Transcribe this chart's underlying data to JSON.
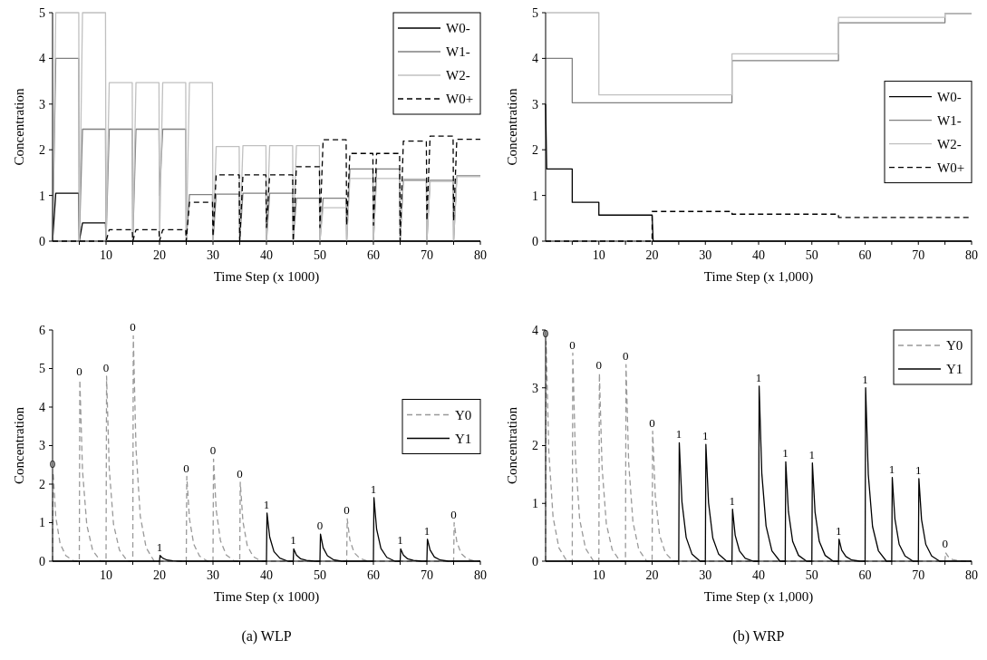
{
  "chart_data": [
    {
      "type": "line",
      "xlabel": "Time Step (x 1000)",
      "ylabel": "Concentration",
      "xlim": [
        0,
        80
      ],
      "ylim": [
        0,
        5
      ],
      "xticks": [
        {
          "value": 5,
          "label": null
        },
        10,
        {
          "value": 15,
          "label": null
        },
        20,
        {
          "value": 25,
          "label": null
        },
        30,
        {
          "value": 35,
          "label": null
        },
        40,
        {
          "value": 45,
          "label": null
        },
        50,
        {
          "value": 55,
          "label": null
        },
        60,
        {
          "value": 65,
          "label": null
        },
        70,
        {
          "value": 75,
          "label": null
        },
        80
      ],
      "yticks": [
        0,
        1,
        2,
        3,
        4,
        5
      ],
      "legend": "top right",
      "x": [
        0,
        0.6,
        4.9,
        5,
        5.6,
        9.9,
        10,
        10.6,
        14.9,
        15,
        15.6,
        19.9,
        20,
        20.6,
        24.9,
        25,
        25.6,
        29.9,
        30,
        30.6,
        34.9,
        35,
        35.6,
        39.9,
        40,
        40.6,
        44.9,
        45,
        45.6,
        49.9,
        50,
        50.6,
        54.9,
        55,
        55.6,
        59.9,
        60,
        60.6,
        64.9,
        65,
        65.6,
        69.9,
        70,
        70.6,
        74.9,
        75,
        75.6,
        80
      ],
      "series": [
        {
          "name": "W0-",
          "color": "#000000",
          "values": [
            0,
            1.05,
            1.05,
            0,
            0.4,
            0.4,
            0,
            0,
            0,
            0,
            0,
            0,
            0,
            0,
            0,
            0,
            0,
            0,
            0,
            0,
            0,
            0,
            0,
            0,
            0,
            0,
            0,
            0,
            0,
            0,
            0,
            0,
            0,
            0,
            0,
            0,
            0,
            0,
            0,
            0,
            0,
            0,
            0,
            0,
            0,
            0,
            0,
            0
          ]
        },
        {
          "name": "W1-",
          "color": "#808080",
          "values": [
            0,
            4,
            4,
            0,
            2.45,
            2.45,
            0,
            2.45,
            2.45,
            0,
            2.45,
            2.45,
            1.0,
            2.45,
            2.45,
            0,
            1.02,
            1.02,
            0,
            1.03,
            1.03,
            0,
            1.05,
            1.05,
            0,
            1.05,
            1.05,
            0,
            0.94,
            0.94,
            0,
            0.94,
            0.94,
            0,
            1.58,
            1.58,
            0,
            1.58,
            1.58,
            0,
            1.33,
            1.33,
            0,
            1.33,
            1.33,
            0,
            1.43,
            1.43
          ]
        },
        {
          "name": "W2-",
          "color": "#c0c0c0",
          "values": [
            0,
            5,
            5,
            0,
            5,
            5,
            0,
            3.47,
            3.47,
            0,
            3.47,
            3.47,
            0,
            3.47,
            3.47,
            0,
            3.47,
            3.47,
            0,
            2.07,
            2.07,
            0,
            2.09,
            2.09,
            0,
            2.09,
            2.09,
            0,
            2.09,
            2.09,
            0,
            0.73,
            0.73,
            0,
            1.37,
            1.37,
            0,
            1.37,
            1.37,
            0,
            1.36,
            1.36,
            0,
            1.31,
            1.31,
            0,
            1.41,
            1.41
          ]
        },
        {
          "name": "W0+",
          "color": "#000000",
          "line_style": "dashed",
          "values": [
            0,
            0,
            0,
            0,
            0,
            0,
            0,
            0.25,
            0.25,
            0,
            0.25,
            0.25,
            0,
            0.25,
            0.25,
            0,
            0.85,
            0.85,
            0.1,
            1.45,
            1.45,
            0,
            1.45,
            1.45,
            0.3,
            1.45,
            1.45,
            0,
            1.63,
            1.63,
            0.3,
            2.22,
            2.22,
            0.35,
            1.92,
            1.92,
            0.35,
            1.92,
            1.92,
            0,
            2.19,
            2.19,
            0.45,
            2.3,
            2.3,
            0.45,
            2.23,
            2.23
          ]
        }
      ]
    },
    {
      "type": "line",
      "xlabel": "Time Step (x 1,000)",
      "ylabel": "Concentration",
      "xlim": [
        0,
        80
      ],
      "ylim": [
        0,
        5
      ],
      "xticks": [
        {
          "value": 5,
          "label": null
        },
        10,
        {
          "value": 15,
          "label": null
        },
        20,
        {
          "value": 25,
          "label": null
        },
        30,
        {
          "value": 35,
          "label": null
        },
        40,
        {
          "value": 45,
          "label": null
        },
        50,
        {
          "value": 55,
          "label": null
        },
        60,
        {
          "value": 65,
          "label": null
        },
        70,
        {
          "value": 75,
          "label": null
        },
        80
      ],
      "yticks": [
        0,
        1,
        2,
        3,
        4,
        5
      ],
      "legend": "right",
      "series": [
        {
          "name": "W0-",
          "color": "#000000",
          "x": [
            0,
            0.2,
            5,
            5,
            10,
            10,
            20,
            20.2,
            80
          ],
          "values": [
            3,
            1.58,
            1.58,
            0.85,
            0.85,
            0.57,
            0.57,
            0,
            0
          ]
        },
        {
          "name": "W1-",
          "color": "#808080",
          "x": [
            0,
            5,
            5,
            35,
            35,
            55,
            55,
            75,
            75,
            80
          ],
          "values": [
            4,
            4,
            3.03,
            3.03,
            3.95,
            3.95,
            4.78,
            4.78,
            4.98,
            4.98
          ]
        },
        {
          "name": "W2-",
          "color": "#c0c0c0",
          "x": [
            0,
            10,
            10,
            35,
            35,
            55,
            55,
            75,
            75,
            80
          ],
          "values": [
            5,
            5,
            3.2,
            3.2,
            4.1,
            4.1,
            4.9,
            4.9,
            4.98,
            4.98
          ]
        },
        {
          "name": "W0+",
          "color": "#000000",
          "line_style": "dashed",
          "x": [
            0,
            20,
            20,
            35,
            35,
            55,
            55,
            80
          ],
          "values": [
            0,
            0,
            0.65,
            0.65,
            0.59,
            0.59,
            0.52,
            0.52
          ]
        }
      ]
    },
    {
      "type": "line",
      "xlabel": "Time Step (x 1000)",
      "ylabel": "Concentration",
      "xlim": [
        0,
        80
      ],
      "ylim": [
        0,
        6
      ],
      "xticks": [
        {
          "value": 5,
          "label": null
        },
        10,
        {
          "value": 15,
          "label": null
        },
        20,
        {
          "value": 25,
          "label": null
        },
        30,
        {
          "value": 35,
          "label": null
        },
        40,
        {
          "value": 45,
          "label": null
        },
        50,
        {
          "value": 55,
          "label": null
        },
        60,
        {
          "value": 65,
          "label": null
        },
        70,
        {
          "value": 75,
          "label": null
        },
        80
      ],
      "yticks": [
        0,
        1,
        2,
        3,
        4,
        5,
        6
      ],
      "legend": "right",
      "series": [
        {
          "name": "Y0",
          "color": "#999999",
          "line_style": "dashed",
          "x": [
            0,
            0.1,
            0.6,
            1.4,
            2.5,
            4,
            5,
            5.1,
            5.6,
            6.4,
            7.5,
            9,
            10,
            10.1,
            10.6,
            11.4,
            12.5,
            14,
            15,
            15.1,
            15.6,
            16.4,
            17.5,
            19,
            25,
            25.1,
            25.6,
            26.4,
            27.5,
            29,
            30,
            30.1,
            30.6,
            31.4,
            32.5,
            34,
            35,
            35.1,
            35.6,
            36.4,
            37.5,
            39,
            55,
            55.1,
            55.6,
            56.4,
            57.5,
            59,
            75,
            75.1,
            75.6,
            76.4,
            77.5,
            79,
            80
          ],
          "values": [
            0,
            2.3,
            1.15,
            0.46,
            0.14,
            0,
            0,
            4.7,
            2.35,
            0.94,
            0.28,
            0,
            0,
            4.8,
            2.4,
            0.96,
            0.29,
            0,
            0,
            5.85,
            2.93,
            1.17,
            0.35,
            0,
            0,
            2.2,
            1.1,
            0.44,
            0.13,
            0,
            0,
            2.65,
            1.33,
            0.53,
            0.16,
            0,
            0,
            2.05,
            1.03,
            0.41,
            0.12,
            0,
            0,
            1.1,
            0.55,
            0.22,
            0.07,
            0,
            0,
            1,
            0.5,
            0.2,
            0.06,
            0,
            0
          ]
        },
        {
          "name": "Y1",
          "color": "#000000",
          "x": [
            0,
            20,
            20.1,
            20.6,
            21.4,
            22.5,
            24,
            40,
            40.1,
            40.6,
            41.4,
            42.5,
            44,
            45,
            45.1,
            45.6,
            46.4,
            47.5,
            49,
            50,
            50.1,
            50.6,
            51.4,
            52.5,
            54,
            60,
            60.1,
            60.6,
            61.4,
            62.5,
            64,
            65,
            65.1,
            65.6,
            66.4,
            67.5,
            69,
            70,
            70.1,
            70.6,
            71.4,
            72.5,
            74,
            80
          ],
          "values": [
            0,
            0,
            0.15,
            0.08,
            0.03,
            0.01,
            0,
            0,
            1.25,
            0.63,
            0.25,
            0.08,
            0,
            0,
            0.32,
            0.16,
            0.06,
            0.02,
            0,
            0,
            0.7,
            0.35,
            0.14,
            0.04,
            0,
            0,
            1.65,
            0.83,
            0.33,
            0.1,
            0,
            0,
            0.32,
            0.16,
            0.06,
            0.02,
            0,
            0,
            0.57,
            0.29,
            0.11,
            0.03,
            0,
            0
          ]
        }
      ],
      "annotations": [
        {
          "text": "0",
          "x": 0,
          "y": 2.3
        },
        {
          "text": "0",
          "x": 5,
          "y": 4.7
        },
        {
          "text": "0",
          "x": 10,
          "y": 4.8
        },
        {
          "text": "0",
          "x": 15,
          "y": 5.85
        },
        {
          "text": "1",
          "x": 20,
          "y": 0.15
        },
        {
          "text": "0",
          "x": 25,
          "y": 2.2
        },
        {
          "text": "0",
          "x": 30,
          "y": 2.65
        },
        {
          "text": "0",
          "x": 35,
          "y": 2.05
        },
        {
          "text": "1",
          "x": 40,
          "y": 1.25
        },
        {
          "text": "1",
          "x": 45,
          "y": 0.32
        },
        {
          "text": "0",
          "x": 50,
          "y": 0.7
        },
        {
          "text": "0",
          "x": 55,
          "y": 1.1
        },
        {
          "text": "1",
          "x": 60,
          "y": 1.65
        },
        {
          "text": "1",
          "x": 65,
          "y": 0.32
        },
        {
          "text": "1",
          "x": 70,
          "y": 0.57
        },
        {
          "text": "0",
          "x": 75,
          "y": 1.0
        },
        "(a) WLP"
      ]
    },
    {
      "type": "line",
      "xlabel": "Time Step (x 1,000)",
      "ylabel": "Concentration",
      "xlim": [
        0,
        80
      ],
      "ylim": [
        0,
        4
      ],
      "xticks": [
        {
          "value": 5,
          "label": null
        },
        10,
        {
          "value": 15,
          "label": null
        },
        20,
        {
          "value": 25,
          "label": null
        },
        30,
        {
          "value": 35,
          "label": null
        },
        40,
        {
          "value": 45,
          "label": null
        },
        50,
        {
          "value": 55,
          "label": null
        },
        60,
        {
          "value": 65,
          "label": null
        },
        70,
        {
          "value": 75,
          "label": null
        },
        80
      ],
      "yticks": [
        0,
        1,
        2,
        3,
        4
      ],
      "legend": "top right",
      "series": [
        {
          "name": "Y0",
          "color": "#999999",
          "line_style": "dashed",
          "x": [
            0,
            0.1,
            0.6,
            1.4,
            2.5,
            4,
            5,
            5.1,
            5.6,
            6.4,
            7.5,
            9,
            10,
            10.1,
            10.6,
            11.4,
            12.5,
            14,
            15,
            15.1,
            15.6,
            16.4,
            17.5,
            19,
            20,
            20.1,
            20.6,
            21.4,
            22.5,
            24,
            75,
            75.1,
            75.6,
            76.4,
            77.5,
            79,
            80
          ],
          "values": [
            0,
            3.8,
            1.9,
            0.76,
            0.23,
            0,
            0,
            3.6,
            1.8,
            0.72,
            0.22,
            0,
            0,
            3.25,
            1.63,
            0.65,
            0.2,
            0,
            0,
            3.4,
            1.7,
            0.68,
            0.2,
            0,
            0,
            2.25,
            1.13,
            0.45,
            0.14,
            0,
            0,
            0.15,
            0.08,
            0.03,
            0.01,
            0,
            0
          ]
        },
        {
          "name": "Y1",
          "color": "#000000",
          "x": [
            0,
            25,
            25.1,
            25.6,
            26.4,
            27.5,
            29,
            30,
            30.1,
            30.6,
            31.4,
            32.5,
            34,
            35,
            35.1,
            35.6,
            36.4,
            37.5,
            39,
            40,
            40.1,
            40.6,
            41.4,
            42.5,
            44,
            45,
            45.1,
            45.6,
            46.4,
            47.5,
            49,
            50,
            50.1,
            50.6,
            51.4,
            52.5,
            54,
            55,
            55.1,
            55.6,
            56.4,
            57.5,
            59,
            60,
            60.1,
            60.6,
            61.4,
            62.5,
            64,
            65,
            65.1,
            65.6,
            66.4,
            67.5,
            69,
            70,
            70.1,
            70.6,
            71.4,
            72.5,
            74,
            80
          ],
          "values": [
            0,
            0,
            2.05,
            1.03,
            0.41,
            0.12,
            0,
            0,
            2.02,
            1.01,
            0.4,
            0.12,
            0,
            0,
            0.9,
            0.45,
            0.18,
            0.05,
            0,
            0,
            3.03,
            1.52,
            0.61,
            0.18,
            0,
            0,
            1.72,
            0.86,
            0.34,
            0.1,
            0,
            0,
            1.7,
            0.85,
            0.34,
            0.1,
            0,
            0,
            0.38,
            0.19,
            0.08,
            0.02,
            0,
            0,
            3,
            1.5,
            0.6,
            0.18,
            0,
            0,
            1.45,
            0.73,
            0.29,
            0.09,
            0,
            0,
            1.43,
            0.72,
            0.29,
            0.09,
            0,
            0
          ]
        }
      ],
      "annotations": [
        {
          "text": "0",
          "x": 0,
          "y": 3.8
        },
        {
          "text": "0",
          "x": 5,
          "y": 3.6
        },
        {
          "text": "0",
          "x": 10,
          "y": 3.25
        },
        {
          "text": "0",
          "x": 15,
          "y": 3.4
        },
        {
          "text": "0",
          "x": 20,
          "y": 2.25
        },
        {
          "text": "1",
          "x": 25,
          "y": 2.05
        },
        {
          "text": "1",
          "x": 30,
          "y": 2.02
        },
        {
          "text": "1",
          "x": 35,
          "y": 0.9
        },
        {
          "text": "1",
          "x": 40,
          "y": 3.03
        },
        {
          "text": "1",
          "x": 45,
          "y": 1.72
        },
        {
          "text": "1",
          "x": 50,
          "y": 1.7
        },
        {
          "text": "1",
          "x": 55,
          "y": 0.38
        },
        {
          "text": "1",
          "x": 60,
          "y": 3.0
        },
        {
          "text": "1",
          "x": 65,
          "y": 1.45
        },
        {
          "text": "1",
          "x": 70,
          "y": 1.43
        },
        {
          "text": "0",
          "x": 75,
          "y": 0.15
        },
        "(b) WRP"
      ]
    }
  ]
}
